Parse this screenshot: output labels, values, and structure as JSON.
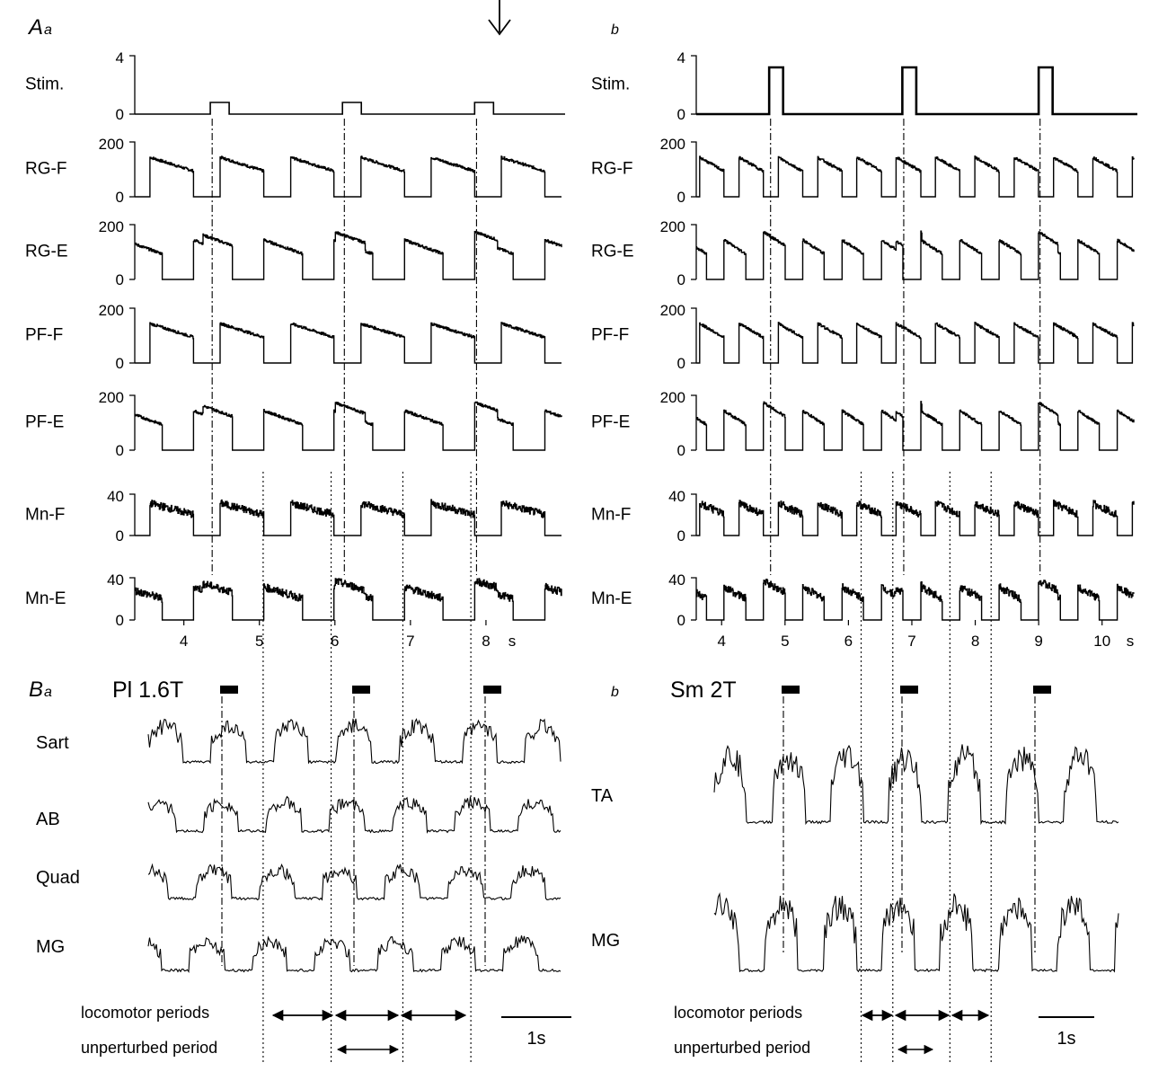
{
  "figure": {
    "panel_A_label": "A",
    "panel_A_sub": "a",
    "panel_Ab_label": "b",
    "panel_B_label": "B",
    "panel_B_sub": "a",
    "panel_Bb_label": "b",
    "tick_unit": "s"
  },
  "chart_data": [
    {
      "type": "line",
      "panel": "Aa",
      "x_ticks": [
        "4",
        "5",
        "6",
        "7",
        "8"
      ],
      "x_unit": "s",
      "xlim": [
        3.35,
        9.0
      ],
      "stim_times": [
        4.35,
        6.1,
        7.85
      ],
      "stim_duration": 0.25,
      "locomotor_period_boundaries": [
        5.05,
        5.95,
        6.9,
        7.8
      ],
      "traces": [
        {
          "name": "Stim.",
          "ticks": [
            "4",
            "0"
          ],
          "ylim": [
            0,
            4
          ],
          "stim_amplitude": 0.8
        },
        {
          "name": "RG-F",
          "ticks": [
            "200",
            "0"
          ],
          "ylim": [
            0,
            200
          ]
        },
        {
          "name": "RG-E",
          "ticks": [
            "200",
            "0"
          ],
          "ylim": [
            0,
            200
          ]
        },
        {
          "name": "PF-F",
          "ticks": [
            "200",
            "0"
          ],
          "ylim": [
            0,
            200
          ]
        },
        {
          "name": "PF-E",
          "ticks": [
            "200",
            "0"
          ],
          "ylim": [
            0,
            200
          ]
        },
        {
          "name": "Mn-F",
          "ticks": [
            "40",
            "0"
          ],
          "ylim": [
            0,
            50
          ]
        },
        {
          "name": "Mn-E",
          "ticks": [
            "40",
            "0"
          ],
          "ylim": [
            0,
            50
          ]
        }
      ]
    },
    {
      "type": "line",
      "panel": "Ab",
      "x_ticks": [
        "4",
        "5",
        "6",
        "7",
        "8",
        "9",
        "10"
      ],
      "x_unit": "s",
      "xlim": [
        3.6,
        10.5
      ],
      "stim_times": [
        4.75,
        6.85,
        9.0
      ],
      "stim_duration": 0.22,
      "locomotor_period_boundaries": [
        6.2,
        6.7,
        7.6,
        8.25
      ],
      "traces": [
        {
          "name": "Stim.",
          "ticks": [
            "4",
            "0"
          ],
          "ylim": [
            0,
            4
          ],
          "stim_amplitude": 3.2
        },
        {
          "name": "RG-F",
          "ticks": [
            "200",
            "0"
          ],
          "ylim": [
            0,
            200
          ]
        },
        {
          "name": "RG-E",
          "ticks": [
            "200",
            "0"
          ],
          "ylim": [
            0,
            200
          ]
        },
        {
          "name": "PF-F",
          "ticks": [
            "200",
            "0"
          ],
          "ylim": [
            0,
            200
          ]
        },
        {
          "name": "PF-E",
          "ticks": [
            "200",
            "0"
          ],
          "ylim": [
            0,
            200
          ]
        },
        {
          "name": "Mn-F",
          "ticks": [
            "40",
            "0"
          ],
          "ylim": [
            0,
            50
          ]
        },
        {
          "name": "Mn-E",
          "ticks": [
            "40",
            "0"
          ],
          "ylim": [
            0,
            50
          ]
        }
      ]
    },
    {
      "type": "line",
      "panel": "Ba",
      "stimulus_label": "Pl 1.6T",
      "traces": [
        "Sart",
        "AB",
        "Quad",
        "MG"
      ],
      "locomotor_periods_label": "locomotor periods",
      "unperturbed_period_label": "unperturbed period",
      "scale_bar": "1s"
    },
    {
      "type": "line",
      "panel": "Bb",
      "stimulus_label": "Sm  2T",
      "traces": [
        "TA",
        "MG"
      ],
      "locomotor_periods_label": "locomotor periods",
      "unperturbed_period_label": "unperturbed period",
      "scale_bar": "1s"
    }
  ]
}
